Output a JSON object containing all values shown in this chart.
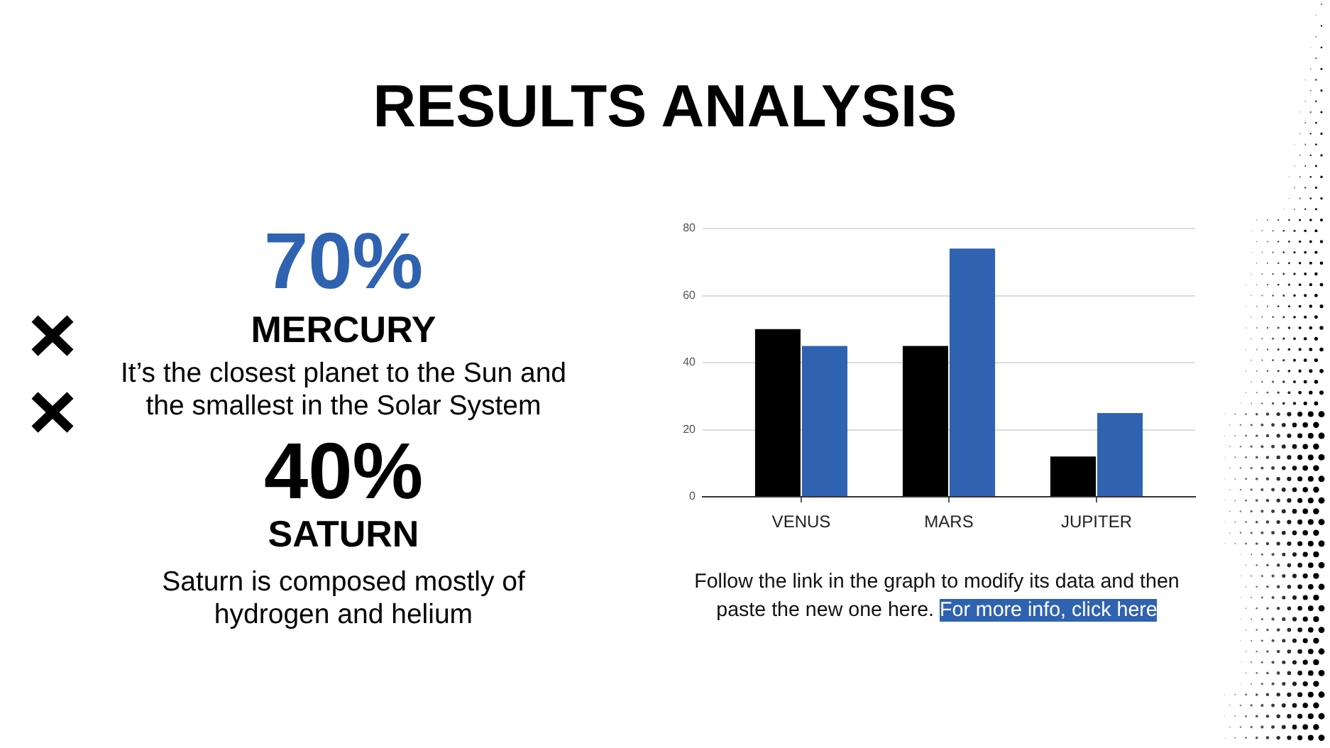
{
  "chart_data": [
    {
      "type": "other",
      "title": "RESULTS ANALYSIS",
      "annotations": [
        "70%",
        "MERCURY",
        "It’s the closest planet to the Sun and the smallest in the Solar System",
        "40%",
        "SATURN",
        "Saturn is composed mostly of hydrogen and helium"
      ]
    },
    {
      "type": "bar",
      "categories": [
        "VENUS",
        "MARS",
        "JUPITER"
      ],
      "series": [
        {
          "color": "#000000",
          "values": [
            50,
            45,
            12
          ]
        },
        {
          "color": "#2f62b1",
          "values": [
            45,
            74,
            25
          ]
        }
      ],
      "ylim": [
        0,
        80
      ],
      "yticks": [
        0,
        20,
        40,
        60,
        80
      ],
      "grid": "y",
      "annotations": [
        "Follow the link in the graph to modify its data and then paste the new one here. For more info, click here"
      ]
    }
  ]
}
